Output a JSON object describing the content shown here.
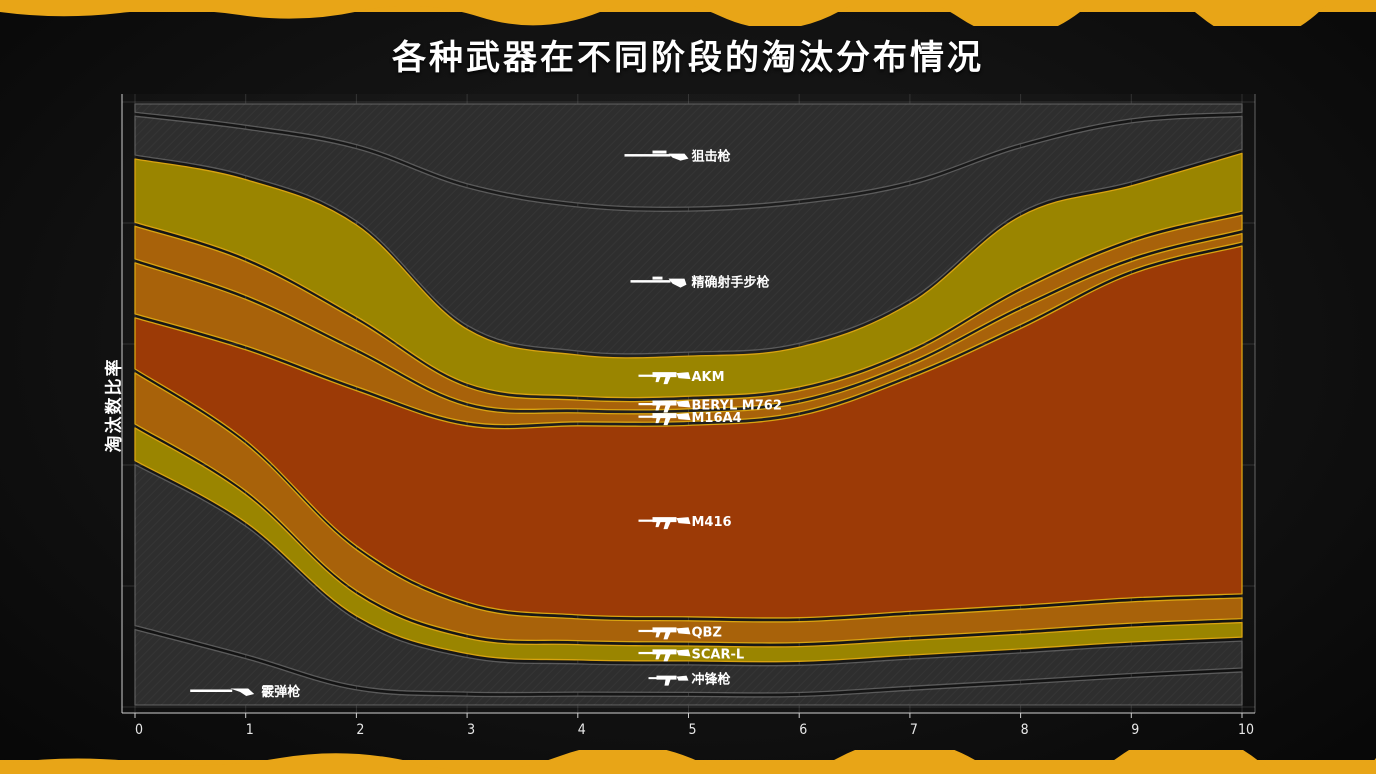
{
  "colors": {
    "edge": "#e8a517",
    "gray_band": "#2e2e2e",
    "yellow_band": "#9a8500",
    "orange_light_band": "#a8620a",
    "orange_band": "#9c3a06",
    "band_stroke": "#d9a411",
    "separator": "#050505"
  },
  "chart_data": {
    "type": "area",
    "title": "各种武器在不同阶段的淘汰分布情况",
    "xlabel": "",
    "ylabel": "淘汰数比率",
    "x": [
      0,
      1,
      2,
      3,
      4,
      5,
      6,
      7,
      8,
      9,
      10
    ],
    "xlim": [
      0,
      10
    ],
    "ylim": [
      0,
      1
    ],
    "stacked": true,
    "normalized": true,
    "grid": true,
    "legend": "inline labels",
    "series": [
      {
        "name": "霰弹枪",
        "style": "gray",
        "icon": "shotgun-icon",
        "values": [
          0.13,
          0.08,
          0.03,
          0.02,
          0.02,
          0.02,
          0.02,
          0.03,
          0.04,
          0.05,
          0.06
        ]
      },
      {
        "name": "冲锋枪",
        "style": "gray",
        "icon": "smg-icon",
        "values": [
          0.27,
          0.21,
          0.11,
          0.06,
          0.05,
          0.05,
          0.05,
          0.05,
          0.05,
          0.05,
          0.05
        ]
      },
      {
        "name": "SCAR-L",
        "style": "yellow",
        "icon": "rifle-icon",
        "values": [
          0.06,
          0.05,
          0.04,
          0.03,
          0.03,
          0.03,
          0.03,
          0.03,
          0.03,
          0.03,
          0.03
        ]
      },
      {
        "name": "QBZ",
        "style": "orange-light",
        "icon": "rifle-icon",
        "values": [
          0.09,
          0.08,
          0.07,
          0.05,
          0.04,
          0.04,
          0.04,
          0.04,
          0.04,
          0.04,
          0.04
        ]
      },
      {
        "name": "M416",
        "style": "orange",
        "icon": "rifle-icon",
        "values": [
          0.09,
          0.15,
          0.25,
          0.28,
          0.3,
          0.31,
          0.33,
          0.38,
          0.45,
          0.52,
          0.57
        ]
      },
      {
        "name": "M16A4",
        "style": "orange-light",
        "icon": "rifle-icon",
        "values": [
          0.09,
          0.08,
          0.06,
          0.03,
          0.02,
          0.02,
          0.02,
          0.02,
          0.03,
          0.02,
          0.02
        ]
      },
      {
        "name": "BERYL M762",
        "style": "orange-light",
        "icon": "rifle-icon",
        "values": [
          0.06,
          0.06,
          0.05,
          0.03,
          0.02,
          0.02,
          0.02,
          0.02,
          0.03,
          0.03,
          0.03
        ]
      },
      {
        "name": "AKM",
        "style": "yellow",
        "icon": "rifle-icon",
        "values": [
          0.11,
          0.13,
          0.15,
          0.09,
          0.07,
          0.07,
          0.07,
          0.08,
          0.12,
          0.09,
          0.1
        ]
      },
      {
        "name": "精确射手步枪",
        "style": "gray",
        "icon": "dmr-icon",
        "values": [
          0.07,
          0.08,
          0.12,
          0.22,
          0.23,
          0.23,
          0.23,
          0.19,
          0.11,
          0.1,
          0.06
        ]
      },
      {
        "name": "狙击枪",
        "style": "gray",
        "icon": "sniper-icon",
        "values": [
          0.02,
          0.04,
          0.07,
          0.13,
          0.16,
          0.17,
          0.16,
          0.13,
          0.07,
          0.03,
          0.02
        ]
      }
    ],
    "label_x": {
      "霰弹枪": 0.3,
      "冲锋枪": 5,
      "SCAR-L": 5,
      "QBZ": 5,
      "M416": 5,
      "M16A4": 5,
      "BERYL M762": 5,
      "AKM": 5,
      "精确射手步枪": 5,
      "狙击枪": 5
    }
  }
}
